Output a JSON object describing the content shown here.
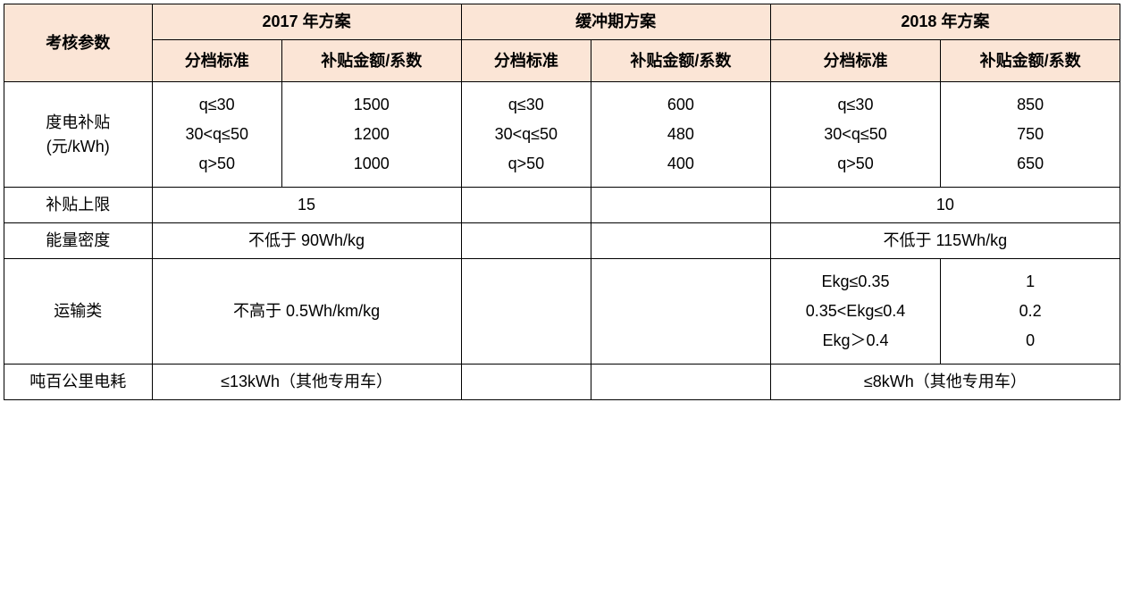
{
  "table": {
    "type": "table",
    "background_color": "#ffffff",
    "border_color": "#000000",
    "header_bg_color": "#fbe5d6",
    "font_size": 18,
    "headers": {
      "param_label": "考核参数",
      "plan_2017": "2017 年方案",
      "plan_buffer": "缓冲期方案",
      "plan_2018": "2018 年方案",
      "tier_label": "分档标准",
      "amount_label": "补贴金额/系数"
    },
    "rows": {
      "subsidy_per_kwh": {
        "label": "度电补贴\n(元/kWh)",
        "plan_2017": {
          "tiers": [
            "q≤30",
            "30<q≤50",
            "q>50"
          ],
          "amounts": [
            "1500",
            "1200",
            "1000"
          ]
        },
        "plan_buffer": {
          "tiers": [
            "q≤30",
            "30<q≤50",
            "q>50"
          ],
          "amounts": [
            "600",
            "480",
            "400"
          ]
        },
        "plan_2018": {
          "tiers": [
            "q≤30",
            "30<q≤50",
            "q>50"
          ],
          "amounts": [
            "850",
            "750",
            "650"
          ]
        }
      },
      "subsidy_cap": {
        "label": "补贴上限",
        "plan_2017": "15",
        "plan_buffer_tier": "",
        "plan_buffer_amount": "",
        "plan_2018": "10"
      },
      "energy_density": {
        "label": "能量密度",
        "plan_2017": "不低于 90Wh/kg",
        "plan_buffer_tier": "",
        "plan_buffer_amount": "",
        "plan_2018": "不低于 115Wh/kg"
      },
      "transport": {
        "label": "运输类",
        "plan_2017": "不高于 0.5Wh/km/kg",
        "plan_buffer_tier": "",
        "plan_buffer_amount": "",
        "plan_2018": {
          "tiers": [
            "Ekg≤0.35",
            "0.35<Ekg≤0.4",
            "Ekg＞0.4"
          ],
          "amounts": [
            "1",
            "0.2",
            "0"
          ]
        }
      },
      "ton_100km": {
        "label": "吨百公里电耗",
        "plan_2017": "≤13kWh（其他专用车）",
        "plan_buffer_tier": "",
        "plan_buffer_amount": "",
        "plan_2018": "≤8kWh（其他专用车）"
      }
    }
  }
}
